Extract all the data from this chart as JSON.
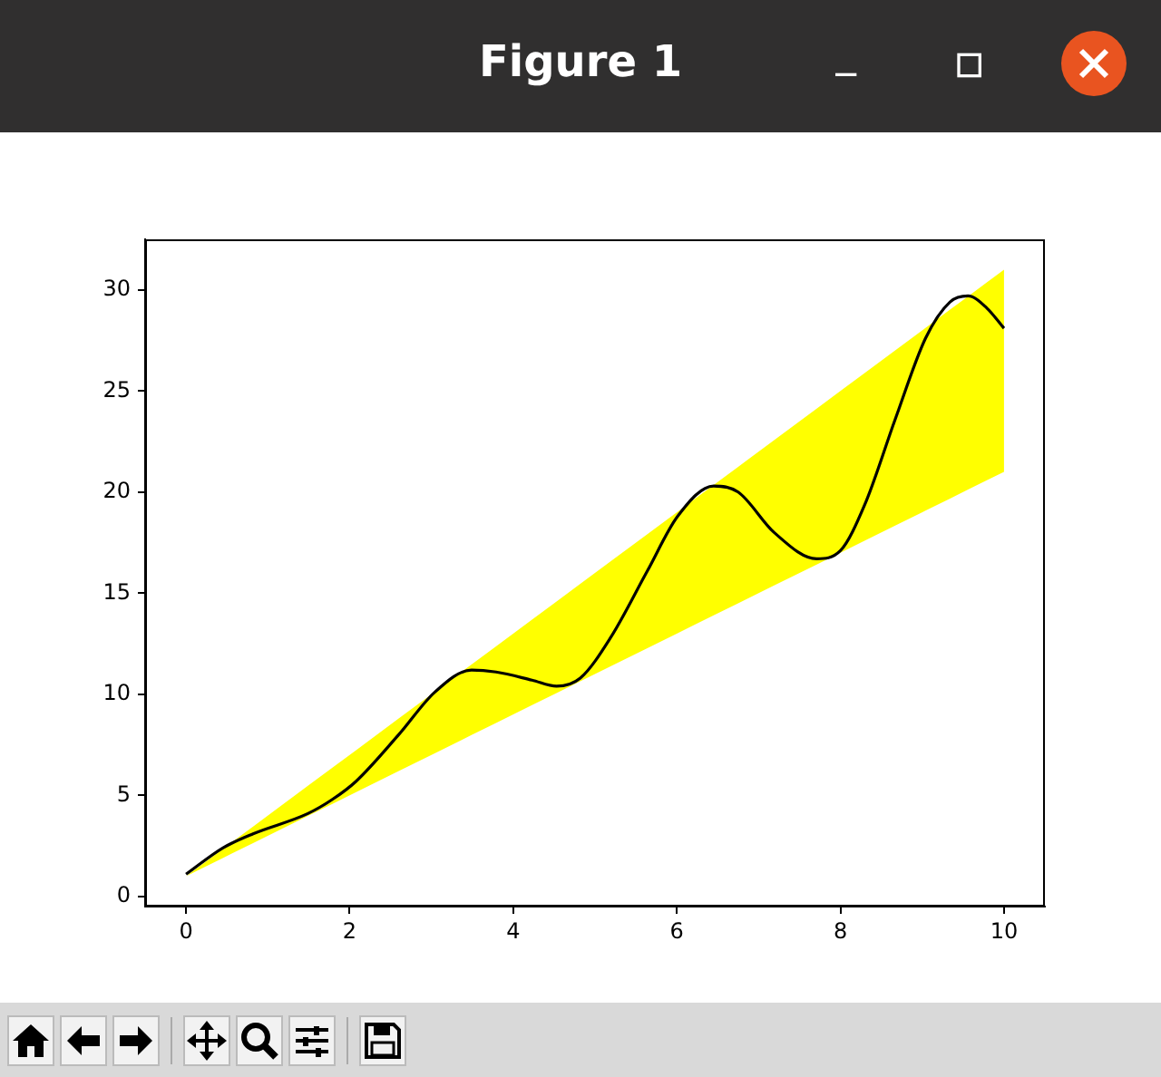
{
  "chart_data": {
    "type": "line",
    "title": "Figure 1",
    "x": [
      0,
      0.45,
      0.82,
      1.49,
      1.79,
      2.08,
      2.6,
      3.04,
      3.49,
      3.79,
      4.23,
      4.53,
      4.82,
      5.19,
      5.64,
      6.01,
      6.45,
      6.75,
      7.19,
      7.71,
      8.0,
      8.3,
      8.67,
      9.04,
      9.34,
      9.56,
      9.79,
      10.0
    ],
    "series": [
      {
        "color": "#000000",
        "values": [
          1.1,
          2.4,
          3.1,
          4.1,
          4.8,
          5.7,
          8.0,
          10.1,
          11.2,
          11.1,
          10.7,
          10.4,
          10.8,
          12.8,
          16.1,
          18.8,
          20.3,
          20.0,
          18.0,
          16.7,
          17.1,
          19.4,
          23.6,
          27.6,
          29.4,
          29.7,
          29.1,
          28.1
        ],
        "lower": [
          1,
          1.9,
          2.64,
          3.98,
          4.58,
          5.16,
          6.2,
          7.08,
          7.98,
          8.58,
          9.46,
          10.06,
          10.64,
          11.38,
          12.28,
          13.02,
          13.9,
          14.5,
          15.38,
          16.42,
          17,
          17.6,
          18.34,
          19.08,
          19.68,
          20.12,
          20.58,
          21
        ],
        "upper": [
          1,
          2.35,
          3.46,
          5.47,
          6.37,
          7.24,
          8.8,
          10.12,
          11.47,
          12.37,
          13.69,
          14.59,
          15.46,
          16.57,
          17.92,
          19.03,
          20.35,
          21.25,
          22.57,
          24.13,
          25,
          25.9,
          27.01,
          28.12,
          29.02,
          29.68,
          30.37,
          31
        ]
      }
    ],
    "xlim": [
      -0.5,
      10.5
    ],
    "xticks": [
      0,
      2,
      4,
      6,
      8,
      10
    ],
    "ylim": [
      -0.5,
      32.5
    ],
    "yticks": [
      0,
      5,
      10,
      15,
      20,
      25,
      30
    ],
    "marker": "none",
    "line_style": "solid",
    "legend": false
  }
}
